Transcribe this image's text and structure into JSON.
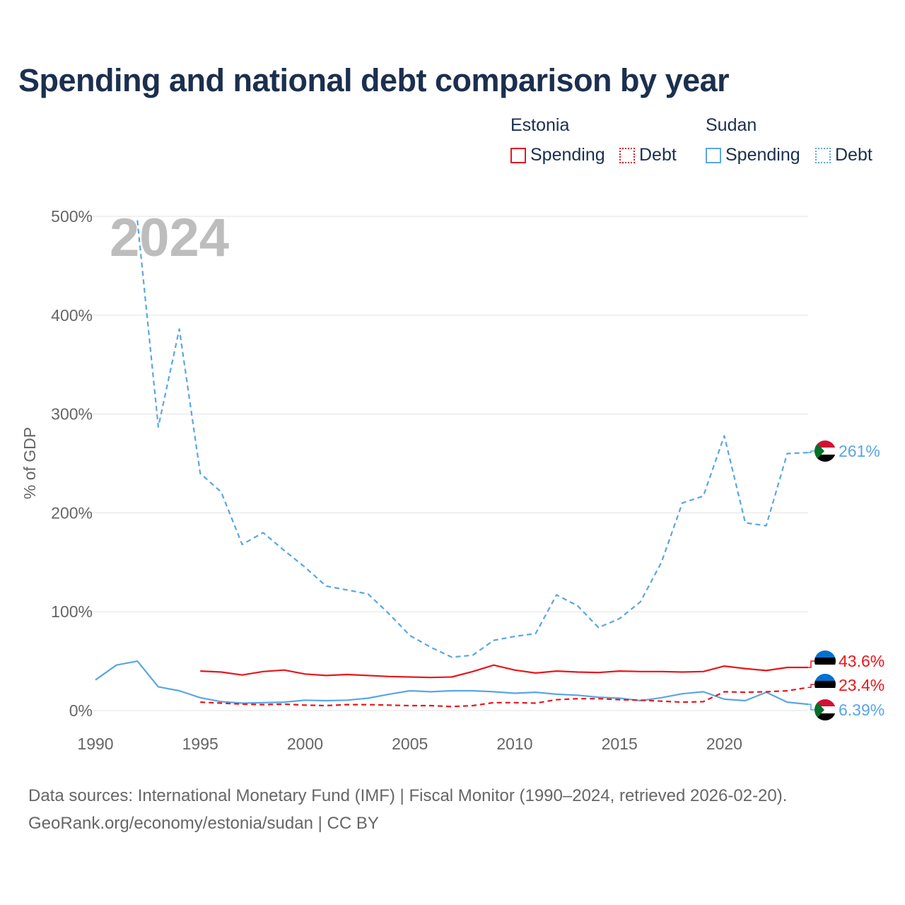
{
  "title": "Spending and national debt comparison by year",
  "legend": {
    "groups": [
      {
        "country": "Estonia",
        "spending_label": "Spending",
        "debt_label": "Debt",
        "color": "#e8161b"
      },
      {
        "country": "Sudan",
        "spending_label": "Spending",
        "debt_label": "Debt",
        "color": "#5aa5e6"
      }
    ]
  },
  "footer": {
    "line1": "Data sources: International Monetary Fund (IMF) | Fiscal Monitor (1990–2024, retrieved 2026-02-20).",
    "line2": "GeoRank.org/economy/estonia/sudan | CC BY"
  },
  "chart_data": {
    "type": "line",
    "title": "Spending and national debt comparison by year",
    "current_year_label": "2024",
    "ylabel": "% of GDP",
    "xlabel": "",
    "ylim": [
      0,
      500
    ],
    "xlim": [
      1990,
      2024
    ],
    "y_ticks": [
      0,
      100,
      200,
      300,
      400,
      500
    ],
    "y_tick_labels": [
      "0%",
      "100%",
      "200%",
      "300%",
      "400%",
      "500%"
    ],
    "x_ticks": [
      1990,
      1995,
      2000,
      2005,
      2010,
      2015,
      2020
    ],
    "x_tick_labels": [
      "1990",
      "1995",
      "2000",
      "2005",
      "2010",
      "2015",
      "2020"
    ],
    "grid": true,
    "series": [
      {
        "name": "Sudan Debt",
        "country": "Sudan",
        "measure": "Debt",
        "color": "#5aa5e6",
        "dash": "dashed",
        "x": [
          1992,
          1993,
          1994,
          1995,
          1996,
          1997,
          1998,
          1999,
          2000,
          2001,
          2002,
          2003,
          2004,
          2005,
          2006,
          2007,
          2008,
          2009,
          2010,
          2011,
          2012,
          2013,
          2014,
          2015,
          2016,
          2017,
          2018,
          2019,
          2020,
          2021,
          2022,
          2023,
          2024
        ],
        "values": [
          496,
          287,
          386,
          240,
          221,
          168,
          180,
          162,
          145,
          126,
          122,
          118,
          98,
          76,
          64,
          54,
          56,
          71,
          75,
          78,
          117,
          106,
          84,
          93,
          110,
          150,
          210,
          217,
          278,
          190,
          187,
          260,
          261
        ],
        "end_label": "261%"
      },
      {
        "name": "Sudan Spending",
        "country": "Sudan",
        "measure": "Spending",
        "color": "#5aa5e6",
        "dash": "solid",
        "x": [
          1990,
          1991,
          1992,
          1993,
          1994,
          1995,
          1996,
          1997,
          1998,
          1999,
          2000,
          2001,
          2002,
          2003,
          2004,
          2005,
          2006,
          2007,
          2008,
          2009,
          2010,
          2011,
          2012,
          2013,
          2014,
          2015,
          2016,
          2017,
          2018,
          2019,
          2020,
          2021,
          2022,
          2023,
          2024
        ],
        "values": [
          31,
          46,
          50,
          24,
          20,
          13,
          9,
          7.5,
          8,
          8.5,
          10.5,
          10,
          10.5,
          12.5,
          16.5,
          20,
          19,
          20,
          20,
          19,
          17.5,
          18.5,
          16.5,
          15.5,
          13.5,
          12.5,
          10,
          13,
          17,
          19,
          11.5,
          10,
          18.5,
          8.5,
          6.39
        ],
        "end_label": "6.39%"
      },
      {
        "name": "Estonia Spending",
        "country": "Estonia",
        "measure": "Spending",
        "color": "#e8161b",
        "dash": "solid",
        "x": [
          1995,
          1996,
          1997,
          1998,
          1999,
          2000,
          2001,
          2002,
          2003,
          2004,
          2005,
          2006,
          2007,
          2008,
          2009,
          2010,
          2011,
          2012,
          2013,
          2014,
          2015,
          2016,
          2017,
          2018,
          2019,
          2020,
          2021,
          2022,
          2023,
          2024
        ],
        "values": [
          40,
          39,
          36,
          39.5,
          41,
          37,
          35.5,
          36.5,
          35.5,
          34.5,
          34,
          33.5,
          34,
          39.5,
          46,
          41,
          38,
          40,
          39,
          38.5,
          40,
          39.5,
          39.5,
          39,
          39.5,
          45,
          42.5,
          40.5,
          43.6,
          43.6
        ],
        "end_label": "43.6%"
      },
      {
        "name": "Estonia Debt",
        "country": "Estonia",
        "measure": "Debt",
        "color": "#e8161b",
        "dash": "dashed",
        "x": [
          1995,
          1996,
          1997,
          1998,
          1999,
          2000,
          2001,
          2002,
          2003,
          2004,
          2005,
          2006,
          2007,
          2008,
          2009,
          2010,
          2011,
          2012,
          2013,
          2014,
          2015,
          2016,
          2017,
          2018,
          2019,
          2020,
          2021,
          2022,
          2023,
          2024
        ],
        "values": [
          8.5,
          7.5,
          6.5,
          6,
          6.5,
          5.5,
          5,
          6,
          6,
          5.5,
          5,
          5,
          4,
          5,
          8,
          8,
          7.5,
          11,
          12,
          12,
          11,
          10.5,
          9.5,
          8.5,
          9,
          19,
          18.5,
          19,
          20,
          23.4
        ],
        "end_label": "23.4%"
      }
    ]
  }
}
